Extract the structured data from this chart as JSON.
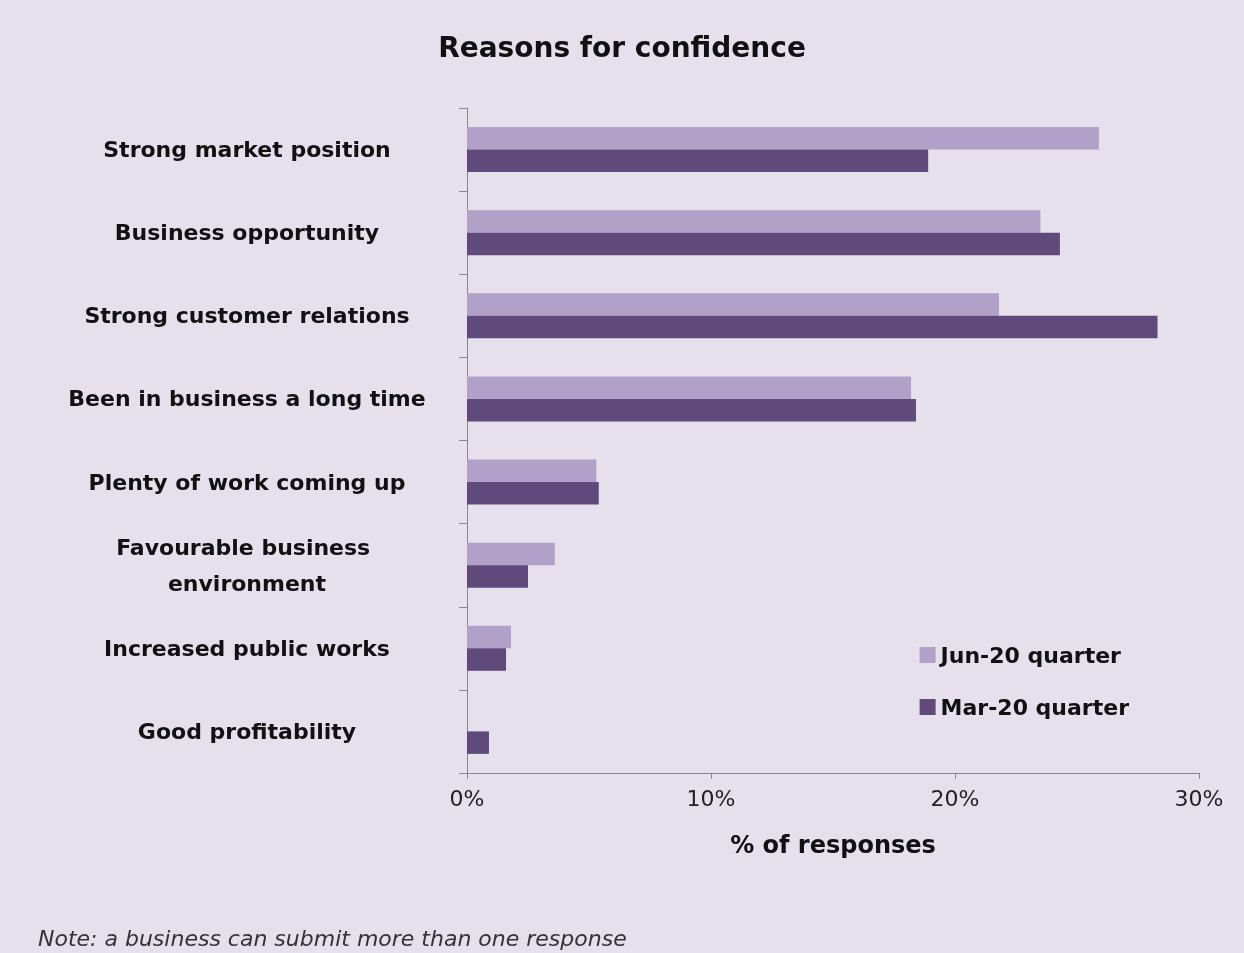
{
  "chart_data": {
    "type": "bar",
    "orientation": "horizontal",
    "title": "Reasons for confidence",
    "xlabel": "% of responses",
    "categories": [
      "Strong market position",
      "Business opportunity",
      "Strong customer relations",
      "Been in business a long time",
      "Plenty of work coming up",
      "Favourable business environment",
      "Increased public works",
      "Good profitability"
    ],
    "series": [
      {
        "name": "Jun-20 quarter",
        "color": "#b1a1c9",
        "values": [
          25.9,
          23.5,
          21.8,
          18.2,
          5.3,
          3.6,
          1.8,
          0
        ]
      },
      {
        "name": "Mar-20 quarter",
        "color": "#5f4a7b",
        "values": [
          18.9,
          24.3,
          28.3,
          18.4,
          5.4,
          2.5,
          1.6,
          0.9
        ]
      }
    ],
    "xlim": [
      0,
      30
    ],
    "xticks": [
      {
        "value": 0,
        "label": "0%"
      },
      {
        "value": 10,
        "label": "10%"
      },
      {
        "value": 20,
        "label": "20%"
      },
      {
        "value": 30,
        "label": "30%"
      }
    ],
    "grid": false,
    "legend": "bottom right",
    "annotations": [
      "Note: a business can submit more than one response"
    ]
  }
}
